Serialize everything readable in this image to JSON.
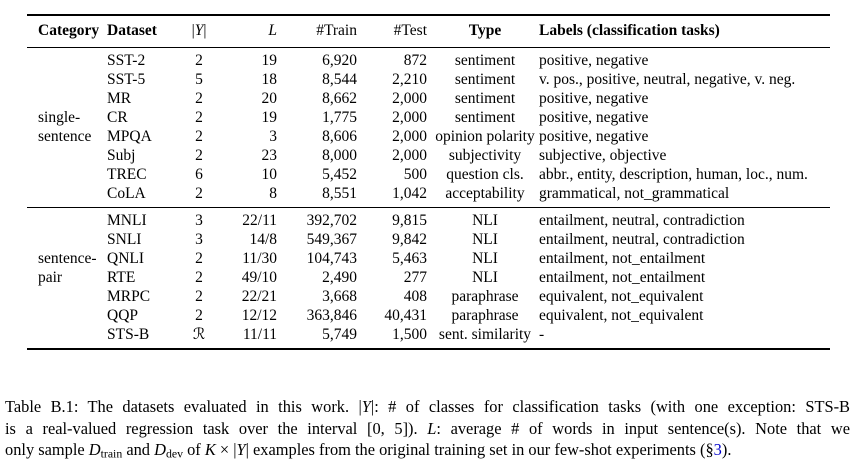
{
  "colors": {
    "link": "#0000CC",
    "text": "#000000",
    "background": "#ffffff",
    "rule": "#000000"
  },
  "table": {
    "headers": [
      [
        {
          "t": "Category"
        }
      ],
      [
        {
          "t": "Dataset"
        }
      ],
      [
        {
          "t": "|"
        },
        {
          "t": "Y",
          "c": "math"
        },
        {
          "t": "|"
        }
      ],
      [
        {
          "t": "L",
          "c": "math"
        }
      ],
      [
        {
          "t": "#Train"
        }
      ],
      [
        {
          "t": "#Test"
        }
      ],
      [
        {
          "t": "Type"
        }
      ],
      [
        {
          "t": "Labels (classification tasks)"
        }
      ]
    ],
    "groups": [
      {
        "rows": [
          {
            "category": "",
            "dataset": "SST-2",
            "classes": "2",
            "length": "19",
            "train": "6,920",
            "test": "872",
            "type": "sentiment",
            "labels": "positive, negative"
          },
          {
            "category": "",
            "dataset": "SST-5",
            "classes": "5",
            "length": "18",
            "train": "8,544",
            "test": "2,210",
            "type": "sentiment",
            "labels": "v. pos., positive, neutral, negative, v. neg."
          },
          {
            "category": "",
            "dataset": "MR",
            "classes": "2",
            "length": "20",
            "train": "8,662",
            "test": "2,000",
            "type": "sentiment",
            "labels": "positive, negative"
          },
          {
            "category": "single-",
            "dataset": "CR",
            "classes": "2",
            "length": "19",
            "train": "1,775",
            "test": "2,000",
            "type": "sentiment",
            "labels": "positive, negative"
          },
          {
            "category": "sentence",
            "dataset": "MPQA",
            "classes": "2",
            "length": "3",
            "train": "8,606",
            "test": "2,000",
            "type": "opinion polarity",
            "labels": "positive, negative"
          },
          {
            "category": "",
            "dataset": "Subj",
            "classes": "2",
            "length": "23",
            "train": "8,000",
            "test": "2,000",
            "type": "subjectivity",
            "labels": "subjective, objective"
          },
          {
            "category": "",
            "dataset": "TREC",
            "classes": "6",
            "length": "10",
            "train": "5,452",
            "test": "500",
            "type": "question cls.",
            "labels": "abbr., entity, description, human, loc., num."
          },
          {
            "category": "",
            "dataset": "CoLA",
            "classes": "2",
            "length": "8",
            "train": "8,551",
            "test": "1,042",
            "type": "acceptability",
            "labels": "grammatical, not_grammatical"
          }
        ]
      },
      {
        "rows": [
          {
            "category": "",
            "dataset": "MNLI",
            "classes": "3",
            "length": "22/11",
            "train": "392,702",
            "test": "9,815",
            "type": "NLI",
            "labels": "entailment, neutral, contradiction"
          },
          {
            "category": "",
            "dataset": "SNLI",
            "classes": "3",
            "length": "14/8",
            "train": "549,367",
            "test": "9,842",
            "type": "NLI",
            "labels": "entailment, neutral, contradiction"
          },
          {
            "category": "sentence-",
            "dataset": "QNLI",
            "classes": "2",
            "length": "11/30",
            "train": "104,743",
            "test": "5,463",
            "type": "NLI",
            "labels": "entailment, not_entailment"
          },
          {
            "category": "pair",
            "dataset": "RTE",
            "classes": "2",
            "length": "49/10",
            "train": "2,490",
            "test": "277",
            "type": "NLI",
            "labels": "entailment, not_entailment"
          },
          {
            "category": "",
            "dataset": "MRPC",
            "classes": "2",
            "length": "22/21",
            "train": "3,668",
            "test": "408",
            "type": "paraphrase",
            "labels": "equivalent, not_equivalent"
          },
          {
            "category": "",
            "dataset": "QQP",
            "classes": "2",
            "length": "12/12",
            "train": "363,846",
            "test": "40,431",
            "type": "paraphrase",
            "labels": "equivalent, not_equivalent"
          },
          {
            "category": "",
            "dataset": "STS-B",
            "classes": "ℛ",
            "length": "11/11",
            "train": "5,749",
            "test": "1,500",
            "type": "sent. similarity",
            "labels": "-"
          }
        ]
      }
    ]
  },
  "caption": {
    "lines": [
      [
        {
          "t": "Table B.1: The datasets evaluated in this work. |"
        },
        {
          "t": "Y",
          "c": "math"
        },
        {
          "t": "|: # of classes for classification tasks (with one exception: STS-B"
        }
      ],
      [
        {
          "t": "is a real-valued regression task over the interval [0, 5]). "
        },
        {
          "t": "L",
          "c": "math"
        },
        {
          "t": ": average # of words in input sentence(s). Note that we"
        }
      ],
      [
        {
          "t": "only sample "
        },
        {
          "t": "D",
          "c": "scr"
        },
        {
          "t": "train",
          "c": "sub"
        },
        {
          "t": " and "
        },
        {
          "t": "D",
          "c": "scr"
        },
        {
          "t": "dev",
          "c": "sub"
        },
        {
          "t": " of "
        },
        {
          "t": "K",
          "c": "math"
        },
        {
          "t": " × |"
        },
        {
          "t": "Y",
          "c": "math"
        },
        {
          "t": "| examples from the original training set in our few-shot experiments (§"
        },
        {
          "t": "3",
          "c": "link"
        },
        {
          "t": ")."
        }
      ]
    ]
  }
}
